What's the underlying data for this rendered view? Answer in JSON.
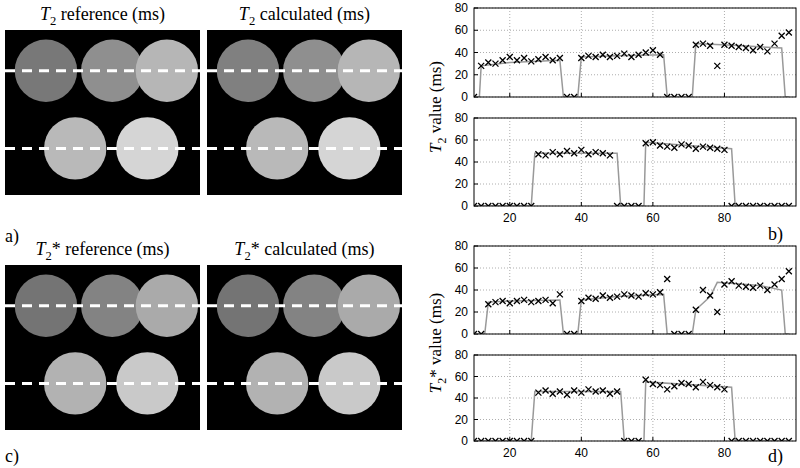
{
  "chart_data": [
    {
      "type": "image",
      "title": "T2 reference (ms)",
      "xlim": [
        0,
        100
      ],
      "ylim": [
        0,
        85
      ],
      "clim": [
        0,
        66
      ],
      "discs": [
        {
          "x": 21,
          "y": 21,
          "r": 16,
          "value": 31
        },
        {
          "x": 55,
          "y": 21,
          "r": 16,
          "value": 37
        },
        {
          "x": 83,
          "y": 21,
          "r": 16,
          "value": 47
        },
        {
          "x": 36,
          "y": 61,
          "r": 16,
          "value": 48
        },
        {
          "x": 73,
          "y": 61,
          "r": 16,
          "value": 55
        }
      ],
      "profile_rows": [
        21,
        61
      ]
    },
    {
      "type": "image",
      "title": "T2 calculated (ms)",
      "xlim": [
        0,
        100
      ],
      "ylim": [
        0,
        85
      ],
      "clim": [
        0,
        66
      ],
      "discs": [
        {
          "x": 21,
          "y": 21,
          "r": 16,
          "value": 33
        },
        {
          "x": 55,
          "y": 21,
          "r": 16,
          "value": 37
        },
        {
          "x": 83,
          "y": 21,
          "r": 16,
          "value": 47
        },
        {
          "x": 36,
          "y": 61,
          "r": 16,
          "value": 48
        },
        {
          "x": 73,
          "y": 61,
          "r": 16,
          "value": 55
        }
      ],
      "profile_rows": [
        21,
        61
      ]
    },
    {
      "type": "image",
      "title": "T2* reference (ms)",
      "xlim": [
        0,
        100
      ],
      "ylim": [
        0,
        85
      ],
      "clim": [
        0,
        66
      ],
      "discs": [
        {
          "x": 21,
          "y": 21,
          "r": 16,
          "value": 30
        },
        {
          "x": 55,
          "y": 21,
          "r": 16,
          "value": 34
        },
        {
          "x": 83,
          "y": 21,
          "r": 16,
          "value": 44
        },
        {
          "x": 36,
          "y": 61,
          "r": 16,
          "value": 46
        },
        {
          "x": 73,
          "y": 61,
          "r": 16,
          "value": 52
        }
      ],
      "profile_rows": [
        21,
        61
      ]
    },
    {
      "type": "image",
      "title": "T2* calculated (ms)",
      "xlim": [
        0,
        100
      ],
      "ylim": [
        0,
        85
      ],
      "clim": [
        0,
        66
      ],
      "discs": [
        {
          "x": 21,
          "y": 21,
          "r": 16,
          "value": 30
        },
        {
          "x": 55,
          "y": 21,
          "r": 16,
          "value": 34
        },
        {
          "x": 83,
          "y": 21,
          "r": 16,
          "value": 44
        },
        {
          "x": 36,
          "y": 61,
          "r": 16,
          "value": 46
        },
        {
          "x": 73,
          "y": 61,
          "r": 16,
          "value": 52
        }
      ],
      "profile_rows": [
        21,
        61
      ]
    },
    {
      "type": "line",
      "ylabel": "T2 value (ms)",
      "tick_labels": "y",
      "grid": true,
      "xlim": [
        10,
        100
      ],
      "ylim": [
        0,
        80
      ],
      "xticks": [
        20,
        40,
        60,
        80
      ],
      "yticks": [
        0,
        20,
        40,
        60,
        80
      ],
      "series": [
        {
          "type": "line",
          "color": "#999999",
          "line_style": "solid",
          "x": [
            10,
            11.5,
            12,
            20,
            34,
            35,
            39,
            40,
            50,
            63,
            64,
            71,
            72,
            85,
            96,
            97,
            98
          ],
          "values": [
            0,
            0,
            28,
            31,
            33,
            0,
            0,
            36,
            37,
            38,
            0,
            0,
            48,
            46,
            44,
            0,
            0
          ]
        },
        {
          "type": "scatter",
          "color": "#000000",
          "marker": "x",
          "x": [
            10,
            12,
            14,
            16,
            18,
            20,
            22,
            24,
            26,
            28,
            30,
            32,
            34,
            36,
            38,
            40,
            42,
            44,
            46,
            48,
            50,
            52,
            54,
            56,
            58,
            60,
            62,
            64,
            66,
            68,
            70,
            72,
            74,
            76,
            78,
            80,
            82,
            84,
            86,
            88,
            90,
            92,
            94,
            96,
            98
          ],
          "values": [
            0,
            28,
            31,
            30,
            33,
            36,
            33,
            35,
            32,
            34,
            36,
            33,
            35,
            0,
            0,
            35,
            37,
            36,
            38,
            36,
            37,
            39,
            36,
            38,
            40,
            42,
            38,
            0,
            0,
            0,
            0,
            47,
            48,
            46,
            28,
            47,
            46,
            45,
            44,
            42,
            45,
            41,
            48,
            55,
            58
          ]
        }
      ]
    },
    {
      "type": "line",
      "grid": true,
      "xlim": [
        10,
        100
      ],
      "ylim": [
        0,
        80
      ],
      "xticks": [
        20,
        40,
        60,
        80
      ],
      "yticks": [
        0,
        20,
        40,
        60,
        80
      ],
      "series": [
        {
          "type": "line",
          "color": "#999999",
          "line_style": "solid",
          "x": [
            10,
            26,
            27,
            50,
            51,
            57.5,
            58,
            82,
            83,
            98
          ],
          "values": [
            0,
            0,
            48,
            48,
            0,
            0,
            58,
            52,
            0,
            0
          ]
        },
        {
          "type": "scatter",
          "color": "#000000",
          "marker": "x",
          "x": [
            10,
            12,
            14,
            16,
            18,
            20,
            22,
            24,
            26,
            28,
            30,
            32,
            34,
            36,
            38,
            40,
            42,
            44,
            46,
            48,
            50,
            52,
            54,
            56,
            58,
            60,
            62,
            64,
            66,
            68,
            70,
            72,
            74,
            76,
            78,
            80,
            82,
            84,
            86,
            88,
            90,
            92,
            94,
            96,
            98
          ],
          "values": [
            0,
            0,
            0,
            0,
            0,
            0,
            0,
            0,
            0,
            47,
            46,
            49,
            47,
            50,
            48,
            51,
            47,
            49,
            48,
            46,
            0,
            0,
            0,
            0,
            57,
            58,
            55,
            54,
            53,
            56,
            55,
            52,
            54,
            53,
            52,
            51,
            0,
            0,
            0,
            0,
            0,
            0,
            0,
            0,
            0
          ]
        }
      ]
    },
    {
      "type": "line",
      "ylabel": "T2* value (ms)",
      "tick_labels": "y",
      "grid": true,
      "xlim": [
        10,
        100
      ],
      "ylim": [
        0,
        80
      ],
      "xticks": [
        20,
        40,
        60,
        80
      ],
      "yticks": [
        0,
        20,
        40,
        60,
        80
      ],
      "series": [
        {
          "type": "line",
          "color": "#999999",
          "line_style": "solid",
          "x": [
            10,
            13,
            14,
            20,
            34,
            35,
            39,
            40,
            50,
            63,
            64,
            71,
            72,
            76,
            78,
            90,
            96,
            97,
            98
          ],
          "values": [
            0,
            0,
            29,
            30,
            31,
            0,
            0,
            31,
            34,
            36,
            0,
            0,
            22,
            34,
            47,
            44,
            40,
            0,
            0
          ]
        },
        {
          "type": "scatter",
          "color": "#000000",
          "marker": "x",
          "x": [
            10,
            12,
            14,
            16,
            18,
            20,
            22,
            24,
            26,
            28,
            30,
            32,
            34,
            36,
            38,
            40,
            42,
            44,
            46,
            48,
            50,
            52,
            54,
            56,
            58,
            60,
            62,
            64,
            66,
            68,
            70,
            72,
            74,
            76,
            78,
            80,
            82,
            84,
            86,
            88,
            90,
            92,
            94,
            96,
            98
          ],
          "values": [
            0,
            0,
            27,
            29,
            30,
            28,
            30,
            31,
            29,
            30,
            31,
            28,
            36,
            0,
            0,
            30,
            33,
            32,
            35,
            33,
            34,
            36,
            35,
            34,
            37,
            36,
            38,
            50,
            0,
            0,
            0,
            22,
            40,
            35,
            20,
            45,
            48,
            44,
            43,
            42,
            44,
            40,
            45,
            50,
            57
          ]
        }
      ]
    },
    {
      "type": "line",
      "grid": true,
      "xlim": [
        10,
        100
      ],
      "ylim": [
        0,
        80
      ],
      "xticks": [
        20,
        40,
        60,
        80
      ],
      "yticks": [
        0,
        20,
        40,
        60,
        80
      ],
      "series": [
        {
          "type": "line",
          "color": "#999999",
          "line_style": "solid",
          "x": [
            10,
            26,
            27,
            51,
            52,
            57.5,
            58,
            82,
            83,
            98
          ],
          "values": [
            0,
            0,
            46,
            46,
            0,
            0,
            55,
            50,
            0,
            0
          ]
        },
        {
          "type": "scatter",
          "color": "#000000",
          "marker": "x",
          "x": [
            10,
            12,
            14,
            16,
            18,
            20,
            22,
            24,
            26,
            28,
            30,
            32,
            34,
            36,
            38,
            40,
            42,
            44,
            46,
            48,
            50,
            52,
            54,
            56,
            58,
            60,
            62,
            64,
            66,
            68,
            70,
            72,
            74,
            76,
            78,
            80,
            82,
            84,
            86,
            88,
            90,
            92,
            94,
            96,
            98
          ],
          "values": [
            0,
            0,
            0,
            0,
            0,
            0,
            0,
            0,
            0,
            45,
            47,
            44,
            46,
            43,
            47,
            45,
            48,
            46,
            47,
            44,
            46,
            0,
            0,
            0,
            57,
            53,
            52,
            48,
            51,
            54,
            53,
            50,
            55,
            52,
            50,
            48,
            0,
            0,
            0,
            0,
            0,
            0,
            0,
            0,
            0
          ]
        }
      ]
    }
  ],
  "panel_labels": [
    "a)",
    "b)",
    "c)",
    "d)"
  ]
}
